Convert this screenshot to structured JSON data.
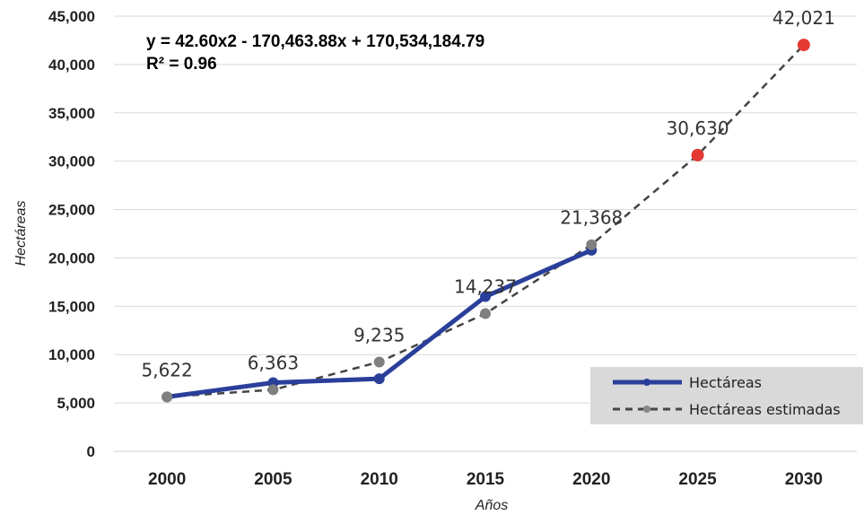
{
  "chart_data": {
    "type": "line",
    "xlabel": "Años",
    "ylabel": "Hectáreas",
    "x": [
      2000,
      2005,
      2010,
      2015,
      2020,
      2025,
      2030
    ],
    "ylim": [
      0,
      45000
    ],
    "yticks": [
      0,
      5000,
      10000,
      15000,
      20000,
      25000,
      30000,
      35000,
      40000,
      45000
    ],
    "ytick_labels": [
      "0",
      "5,000",
      "10,000",
      "15,000",
      "20,000",
      "25,000",
      "30,000",
      "35,000",
      "40,000",
      "45,000"
    ],
    "grid": "horizontal",
    "legend_position": "bottom-right",
    "equation": {
      "line1": "y = 42.60x2 - 170,463.88x + 170,534,184.79",
      "line2": "R² = 0.96"
    },
    "series": [
      {
        "name": "Hectáreas",
        "style": "solid",
        "color": "#2a3f9a",
        "x": [
          2000,
          2005,
          2010,
          2015,
          2020
        ],
        "values": [
          5622,
          7100,
          7500,
          16000,
          20800
        ]
      },
      {
        "name": "Hectáreas estimadas",
        "style": "dashed",
        "color": "#444444",
        "x": [
          2000,
          2005,
          2010,
          2015,
          2020,
          2025,
          2030
        ],
        "values": [
          5622,
          6363,
          9235,
          14237,
          21368,
          30630,
          42021
        ],
        "projected_color": "#e53935",
        "projected_from_index": 5
      }
    ],
    "data_labels": [
      {
        "x": 2000,
        "y": 5622,
        "text": "5,622"
      },
      {
        "x": 2005,
        "y": 6363,
        "text": "6,363"
      },
      {
        "x": 2010,
        "y": 9235,
        "text": "9,235"
      },
      {
        "x": 2015,
        "y": 14237,
        "text": "14,237"
      },
      {
        "x": 2020,
        "y": 21368,
        "text": "21,368"
      },
      {
        "x": 2025,
        "y": 30630,
        "text": "30,630"
      },
      {
        "x": 2030,
        "y": 42021,
        "text": "42,021"
      }
    ]
  }
}
